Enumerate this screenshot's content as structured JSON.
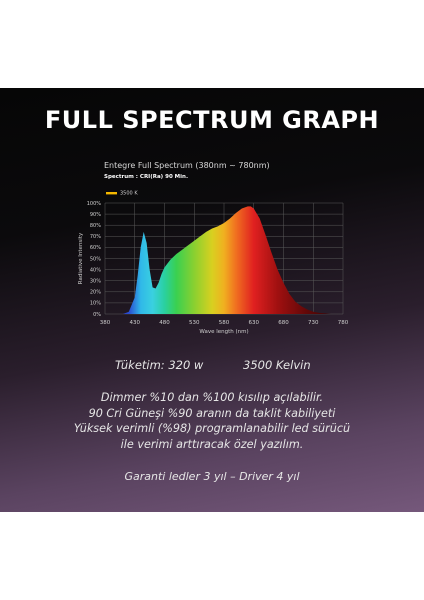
{
  "header": {
    "title": "FULL SPECTRUM GRAPH"
  },
  "chart_data": {
    "type": "area",
    "title": "Entegre Full Spectrum (380nm ~ 780nm)",
    "subtitle_label": "Spectrum : ",
    "subtitle_value": "CRI(Ra) 90 Min.",
    "xlabel": "Wave length (nm)",
    "ylabel": "Radiative Intensity",
    "xlim": [
      380,
      780
    ],
    "ylim": [
      0,
      100
    ],
    "x_ticks": [
      "380",
      "430",
      "480",
      "530",
      "580",
      "630",
      "680",
      "730",
      "780"
    ],
    "y_ticks": [
      "0%",
      "10%",
      "20%",
      "30%",
      "40%",
      "50%",
      "60%",
      "70%",
      "80%",
      "90%",
      "100%"
    ],
    "grid": true,
    "legend_position": "top-left",
    "series": [
      {
        "name": "3500 K",
        "x": [
          380,
          410,
          420,
          430,
          435,
          440,
          445,
          450,
          455,
          460,
          465,
          470,
          475,
          480,
          490,
          500,
          510,
          520,
          530,
          540,
          550,
          560,
          570,
          580,
          590,
          600,
          610,
          620,
          625,
          630,
          640,
          650,
          660,
          670,
          680,
          690,
          700,
          710,
          720,
          730,
          740,
          760,
          780
        ],
        "y": [
          0,
          0,
          2,
          15,
          35,
          60,
          74,
          64,
          40,
          24,
          23,
          28,
          36,
          42,
          49,
          54,
          58,
          62,
          66,
          70,
          74,
          77,
          79,
          82,
          86,
          91,
          95,
          97,
          97,
          95,
          86,
          71,
          55,
          40,
          28,
          18,
          11,
          7,
          4,
          2,
          1,
          0,
          0
        ]
      }
    ],
    "colors": {
      "legend_swatch": "#f5b800",
      "grid": "#5a5a5a",
      "axis_text": "#cfcfcf"
    }
  },
  "specs": {
    "power": "Tüketim: 320 w",
    "temperature": "3500 Kelvin"
  },
  "description": [
    "Dimmer %10 dan %100 kısılıp açılabilir.",
    "90 Cri Güneşi %90 aranın da taklit kabiliyeti",
    "Yüksek verimli (%98) programlanabilir led sürücü",
    "ile verimi arttıracak özel yazılım."
  ],
  "warranty": "Garanti ledler 3 yıl – Driver 4 yıl"
}
